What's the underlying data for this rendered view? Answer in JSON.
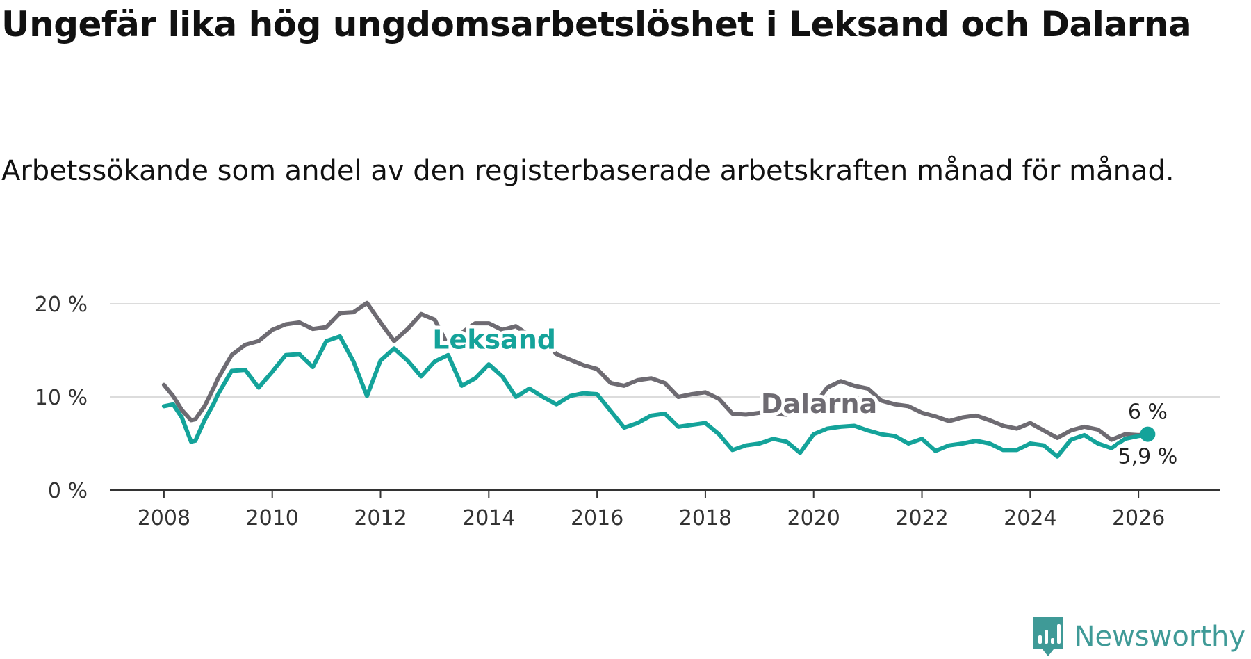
{
  "title": "Ungefär lika hög ungdomsarbetslöshet i Leksand och Dalarna",
  "subtitle": "Arbetssökande som andel av den registerbaserade arbetskraften månad för månad.",
  "brand": "Newsworthy",
  "colors": {
    "leksand": "#14a39a",
    "dalarna": "#6e6b72",
    "grid": "#dcdcdc",
    "axis": "#333333",
    "brand": "#3f9a97"
  },
  "chart_data": {
    "type": "line",
    "title": "Ungefär lika hög ungdomsarbetslöshet i Leksand och Dalarna",
    "xlabel": "",
    "ylabel": "",
    "xlim": [
      2007.0,
      2027.5
    ],
    "ylim": [
      0,
      20
    ],
    "grid": true,
    "y_ticks": [
      0,
      10,
      20
    ],
    "y_tick_labels": [
      "0 %",
      "10 %",
      "20 %"
    ],
    "x_ticks": [
      2008,
      2010,
      2012,
      2014,
      2016,
      2018,
      2020,
      2022,
      2024,
      2026
    ],
    "x_tick_labels": [
      "2008",
      "2010",
      "2012",
      "2014",
      "2016",
      "2018",
      "2020",
      "2022",
      "2024",
      "2026"
    ],
    "series": [
      {
        "name": "Dalarna",
        "label": "Dalarna",
        "end_label": "6 %",
        "x": [
          2008.0,
          2008.17,
          2008.33,
          2008.5,
          2008.58,
          2008.75,
          2008.92,
          2009.0,
          2009.25,
          2009.5,
          2009.75,
          2010.0,
          2010.25,
          2010.5,
          2010.75,
          2011.0,
          2011.25,
          2011.5,
          2011.75,
          2012.0,
          2012.25,
          2012.5,
          2012.75,
          2013.0,
          2013.25,
          2013.5,
          2013.75,
          2014.0,
          2014.25,
          2014.5,
          2014.75,
          2015.0,
          2015.25,
          2015.5,
          2015.75,
          2016.0,
          2016.25,
          2016.5,
          2016.75,
          2017.0,
          2017.25,
          2017.5,
          2017.75,
          2018.0,
          2018.25,
          2018.5,
          2018.75,
          2019.0,
          2019.25,
          2019.5,
          2019.75,
          2020.0,
          2020.25,
          2020.5,
          2020.75,
          2021.0,
          2021.25,
          2021.5,
          2021.75,
          2022.0,
          2022.25,
          2022.5,
          2022.75,
          2023.0,
          2023.25,
          2023.5,
          2023.75,
          2024.0,
          2024.25,
          2024.5,
          2024.75,
          2025.0,
          2025.25,
          2025.5,
          2025.75,
          2026.0,
          2026.17
        ],
        "values": [
          11.3,
          10.1,
          8.6,
          7.5,
          7.6,
          9.0,
          11.0,
          12.0,
          14.5,
          15.6,
          16.0,
          17.2,
          17.8,
          18.0,
          17.3,
          17.5,
          19.0,
          19.1,
          20.1,
          18.0,
          16.0,
          17.3,
          18.9,
          18.3,
          15.5,
          16.9,
          17.9,
          17.9,
          17.2,
          17.6,
          16.6,
          16.3,
          14.6,
          14.0,
          13.4,
          13.0,
          11.5,
          11.2,
          11.8,
          12.0,
          11.5,
          10.0,
          10.3,
          10.5,
          9.8,
          8.2,
          8.1,
          8.3,
          8.2,
          8.1,
          8.6,
          9.0,
          11.0,
          11.7,
          11.2,
          10.9,
          9.6,
          9.2,
          9.0,
          8.3,
          7.9,
          7.4,
          7.8,
          8.0,
          7.5,
          6.9,
          6.6,
          7.2,
          6.4,
          5.6,
          6.4,
          6.8,
          6.5,
          5.4,
          6.0,
          5.9,
          6.0
        ]
      },
      {
        "name": "Leksand",
        "label": "Leksand",
        "end_label": "5,9 %",
        "x": [
          2008.0,
          2008.17,
          2008.33,
          2008.5,
          2008.58,
          2008.75,
          2008.92,
          2009.0,
          2009.25,
          2009.5,
          2009.75,
          2010.0,
          2010.25,
          2010.5,
          2010.75,
          2011.0,
          2011.25,
          2011.5,
          2011.75,
          2012.0,
          2012.25,
          2012.5,
          2012.75,
          2013.0,
          2013.25,
          2013.5,
          2013.75,
          2014.0,
          2014.25,
          2014.5,
          2014.75,
          2015.0,
          2015.25,
          2015.5,
          2015.75,
          2016.0,
          2016.25,
          2016.5,
          2016.75,
          2017.0,
          2017.25,
          2017.5,
          2017.75,
          2018.0,
          2018.25,
          2018.5,
          2018.75,
          2019.0,
          2019.25,
          2019.5,
          2019.75,
          2020.0,
          2020.25,
          2020.5,
          2020.75,
          2021.0,
          2021.25,
          2021.5,
          2021.75,
          2022.0,
          2022.25,
          2022.5,
          2022.75,
          2023.0,
          2023.25,
          2023.5,
          2023.75,
          2024.0,
          2024.25,
          2024.5,
          2024.75,
          2025.0,
          2025.25,
          2025.5,
          2025.75,
          2026.0,
          2026.17
        ],
        "values": [
          9.0,
          9.2,
          7.8,
          5.2,
          5.3,
          7.5,
          9.3,
          10.3,
          12.8,
          12.9,
          11.0,
          12.7,
          14.5,
          14.6,
          13.2,
          16.0,
          16.5,
          13.8,
          10.1,
          13.9,
          15.2,
          13.9,
          12.2,
          13.8,
          14.5,
          11.2,
          12.0,
          13.5,
          12.2,
          10.0,
          10.9,
          10.0,
          9.2,
          10.1,
          10.4,
          10.3,
          8.5,
          6.7,
          7.2,
          8.0,
          8.2,
          6.8,
          7.0,
          7.2,
          6.0,
          4.3,
          4.8,
          5.0,
          5.5,
          5.2,
          4.0,
          6.0,
          6.6,
          6.8,
          6.9,
          6.4,
          6.0,
          5.8,
          5.0,
          5.5,
          4.2,
          4.8,
          5.0,
          5.3,
          5.0,
          4.3,
          4.3,
          5.0,
          4.8,
          3.6,
          5.4,
          5.9,
          5.0,
          4.5,
          5.5,
          5.8,
          5.9
        ]
      }
    ]
  }
}
